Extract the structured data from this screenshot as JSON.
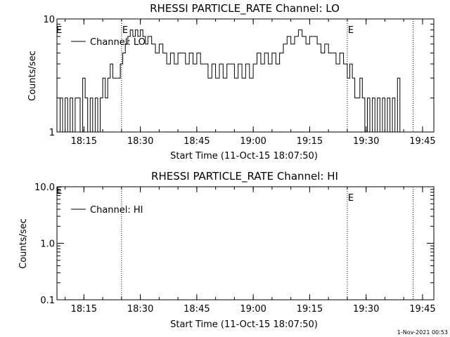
{
  "timestamp": "1-Nov-2021 00:53",
  "chart_data": [
    {
      "type": "line",
      "title": "RHESSI PARTICLE_RATE Channel: LO",
      "xlabel": "Start Time (11-Oct-15 18:07:50)",
      "ylabel": "Counts/sec",
      "yscale": "log",
      "ylim": [
        1,
        10
      ],
      "y_tick_labels": [
        "1",
        "10"
      ],
      "xlim": [
        "18:07:50",
        "19:48:00"
      ],
      "x_tick_labels": [
        "18:15",
        "18:30",
        "18:45",
        "19:00",
        "19:15",
        "19:30",
        "19:45"
      ],
      "legend": {
        "position": "top-left",
        "entries": [
          "Channel: LO"
        ]
      },
      "event_markers": [
        {
          "time": "18:25:00",
          "label": "E"
        },
        {
          "time": "19:25:00",
          "label": "E"
        },
        {
          "time": "19:42:30",
          "label": ""
        }
      ],
      "edge_marker": "E",
      "series": [
        {
          "name": "Channel: LO",
          "x": [
            "18:08:00",
            "18:08:40",
            "18:09:20",
            "18:10:00",
            "18:10:40",
            "18:11:20",
            "18:12:00",
            "18:12:40",
            "18:13:20",
            "18:14:00",
            "18:14:40",
            "18:15:20",
            "18:16:00",
            "18:16:40",
            "18:17:20",
            "18:18:00",
            "18:18:40",
            "18:19:20",
            "18:20:00",
            "18:20:40",
            "18:21:20",
            "18:22:00",
            "18:22:40",
            "18:23:20",
            "18:24:00",
            "18:24:40",
            "18:25:20",
            "18:26:00",
            "18:26:40",
            "18:27:20",
            "18:28:00",
            "18:28:40",
            "18:29:20",
            "18:30:00",
            "18:30:40",
            "18:31:20",
            "18:32:00",
            "18:33:00",
            "18:34:00",
            "18:35:00",
            "18:36:00",
            "18:37:00",
            "18:38:00",
            "18:39:00",
            "18:40:00",
            "18:41:00",
            "18:42:00",
            "18:43:00",
            "18:44:00",
            "18:45:00",
            "18:46:00",
            "18:47:00",
            "18:48:00",
            "18:49:00",
            "18:50:00",
            "18:51:00",
            "18:52:00",
            "18:53:00",
            "18:54:00",
            "18:55:00",
            "18:56:00",
            "18:57:00",
            "18:58:00",
            "18:59:00",
            "19:00:00",
            "19:01:00",
            "19:02:00",
            "19:03:00",
            "19:04:00",
            "19:05:00",
            "19:06:00",
            "19:07:00",
            "19:08:00",
            "19:09:00",
            "19:10:00",
            "19:11:00",
            "19:12:00",
            "19:13:00",
            "19:14:00",
            "19:15:00",
            "19:16:00",
            "19:17:00",
            "19:18:00",
            "19:19:00",
            "19:20:00",
            "19:21:00",
            "19:22:00",
            "19:23:00",
            "19:24:00",
            "19:25:00",
            "19:25:40",
            "19:26:20",
            "19:27:00",
            "19:27:40",
            "19:28:20",
            "19:29:00",
            "19:29:40",
            "19:30:20",
            "19:31:00",
            "19:31:40",
            "19:32:20",
            "19:33:00",
            "19:33:40",
            "19:34:20",
            "19:35:00",
            "19:35:40",
            "19:36:20",
            "19:37:00",
            "19:37:40",
            "19:38:20",
            "19:39:00"
          ],
          "values": [
            1,
            2,
            1,
            2,
            1,
            2,
            1,
            2,
            2,
            1,
            3,
            2,
            1,
            2,
            1,
            2,
            1,
            2,
            3,
            2,
            3,
            4,
            3,
            3,
            3,
            4,
            5,
            6,
            7,
            8,
            7,
            8,
            7,
            8,
            7,
            6,
            7,
            6,
            5,
            6,
            5,
            4,
            5,
            4,
            5,
            5,
            4,
            5,
            4,
            5,
            4,
            4,
            3,
            4,
            3,
            4,
            3,
            4,
            4,
            3,
            4,
            3,
            4,
            3,
            4,
            5,
            4,
            5,
            4,
            5,
            4,
            5,
            6,
            7,
            6,
            7,
            8,
            7,
            6,
            7,
            7,
            6,
            5,
            6,
            5,
            5,
            4,
            5,
            4,
            3,
            4,
            3,
            2,
            2,
            3,
            2,
            1,
            2,
            1,
            2,
            1,
            2,
            1,
            2,
            1,
            2,
            1,
            2,
            1,
            3,
            1
          ]
        }
      ]
    },
    {
      "type": "line",
      "title": "RHESSI PARTICLE_RATE Channel: HI",
      "xlabel": "Start Time (11-Oct-15 18:07:50)",
      "ylabel": "Counts/sec",
      "yscale": "log",
      "ylim": [
        0.1,
        10
      ],
      "y_tick_labels": [
        "0.1",
        "1.0",
        "10.0"
      ],
      "xlim": [
        "18:07:50",
        "19:48:00"
      ],
      "x_tick_labels": [
        "18:15",
        "18:30",
        "18:45",
        "19:00",
        "19:15",
        "19:30",
        "19:45"
      ],
      "legend": {
        "position": "top-left",
        "entries": [
          "Channel: HI"
        ]
      },
      "event_markers": [
        {
          "time": "18:25:00",
          "label": ""
        },
        {
          "time": "19:25:00",
          "label": "E"
        },
        {
          "time": "19:42:30",
          "label": ""
        }
      ],
      "edge_marker": "E",
      "series": [
        {
          "name": "Channel: HI",
          "x": [],
          "values": []
        }
      ]
    }
  ]
}
